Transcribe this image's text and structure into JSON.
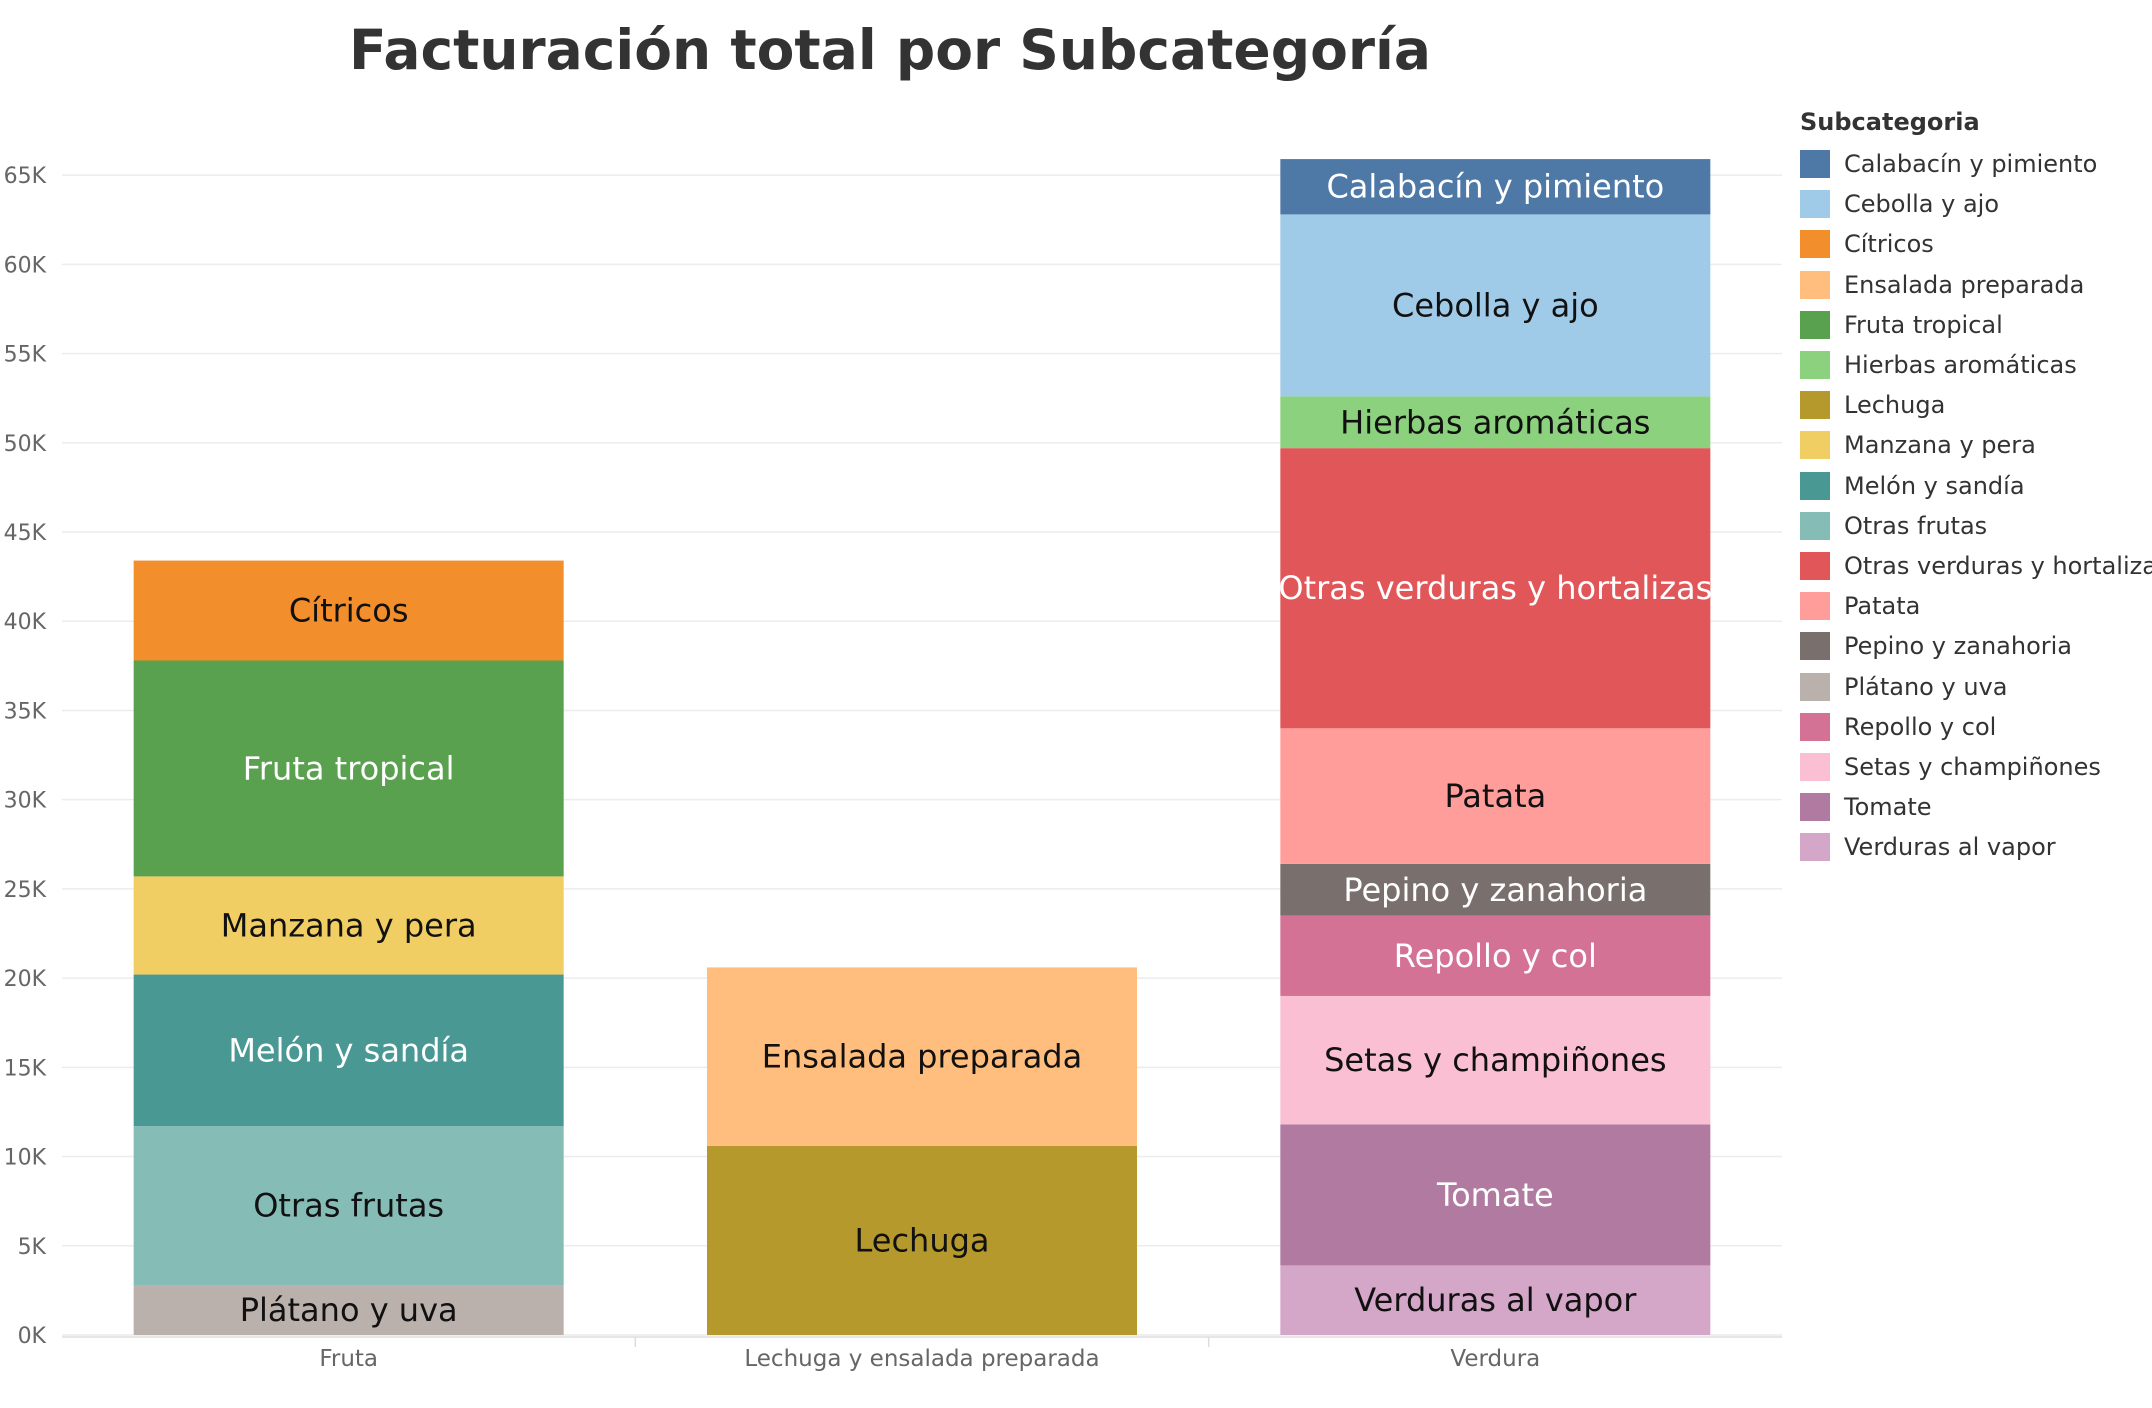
{
  "chart_data": {
    "type": "bar",
    "stacked": true,
    "title": "Facturación total por Subcategoría",
    "xlabel": "",
    "ylabel": "",
    "ylim": [
      0,
      68000
    ],
    "yticks": [
      0,
      5000,
      10000,
      15000,
      20000,
      25000,
      30000,
      35000,
      40000,
      45000,
      50000,
      55000,
      60000,
      65000
    ],
    "ytick_labels": [
      "0K",
      "5K",
      "10K",
      "15K",
      "20K",
      "25K",
      "30K",
      "35K",
      "40K",
      "45K",
      "50K",
      "55K",
      "60K",
      "65K"
    ],
    "categories": [
      "Fruta",
      "Lechuga y ensalada preparada",
      "Verdura"
    ],
    "grid": true,
    "legend": {
      "title": "Subcategoria",
      "position": "right"
    },
    "series": [
      {
        "name": "Calabacín y pimiento",
        "color": "#4E79A7",
        "values": [
          0,
          0,
          3100
        ]
      },
      {
        "name": "Cebolla y ajo",
        "color": "#A0CBE8",
        "values": [
          0,
          0,
          10200
        ]
      },
      {
        "name": "Cítricos",
        "color": "#F28E2B",
        "values": [
          5600,
          0,
          0
        ]
      },
      {
        "name": "Ensalada preparada",
        "color": "#FFBE7D",
        "values": [
          0,
          10000,
          0
        ]
      },
      {
        "name": "Fruta tropical",
        "color": "#59A14F",
        "values": [
          12100,
          0,
          0
        ]
      },
      {
        "name": "Hierbas aromáticas",
        "color": "#8CD17D",
        "values": [
          0,
          0,
          2900
        ]
      },
      {
        "name": "Lechuga",
        "color": "#B6992D",
        "values": [
          0,
          10600,
          0
        ]
      },
      {
        "name": "Manzana y pera",
        "color": "#F1CE63",
        "values": [
          5500,
          0,
          0
        ]
      },
      {
        "name": "Melón y sandía",
        "color": "#499894",
        "values": [
          8500,
          0,
          0
        ]
      },
      {
        "name": "Otras frutas",
        "color": "#86BCB6",
        "values": [
          8900,
          0,
          0
        ]
      },
      {
        "name": "Otras verduras y hortalizas",
        "color": "#E15759",
        "values": [
          0,
          0,
          15700
        ]
      },
      {
        "name": "Patata",
        "color": "#FF9D9A",
        "values": [
          0,
          0,
          7600
        ]
      },
      {
        "name": "Pepino y zanahoria",
        "color": "#79706E",
        "values": [
          0,
          0,
          2900
        ]
      },
      {
        "name": "Plátano y uva",
        "color": "#BAB0AC",
        "values": [
          2800,
          0,
          0
        ]
      },
      {
        "name": "Repollo y col",
        "color": "#D37295",
        "values": [
          0,
          0,
          4500
        ]
      },
      {
        "name": "Setas y champiñones",
        "color": "#FABFD2",
        "values": [
          0,
          0,
          7200
        ]
      },
      {
        "name": "Tomate",
        "color": "#B07AA1",
        "values": [
          0,
          0,
          7900
        ]
      },
      {
        "name": "Verduras al vapor",
        "color": "#D4A6C8",
        "values": [
          0,
          0,
          3900
        ]
      }
    ],
    "stack_order": [
      [
        "Plátano y uva",
        "Otras frutas",
        "Melón y sandía",
        "Manzana y pera",
        "Fruta tropical",
        "Cítricos"
      ],
      [
        "Lechuga",
        "Ensalada preparada"
      ],
      [
        "Verduras al vapor",
        "Tomate",
        "Setas y champiñones",
        "Repollo y col",
        "Pepino y zanahoria",
        "Patata",
        "Otras verduras y hortalizas",
        "Hierbas aromáticas",
        "Cebolla y ajo",
        "Calabacín y pimiento"
      ]
    ],
    "light_text_segments": [
      "Calabacín y pimiento",
      "Fruta tropical",
      "Melón y sandía",
      "Otras verduras y hortalizas",
      "Pepino y zanahoria",
      "Repollo y col",
      "Tomate"
    ]
  }
}
